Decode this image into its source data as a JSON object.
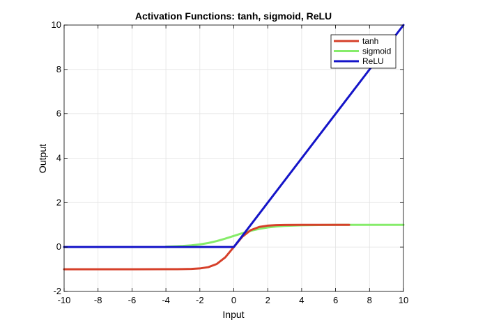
{
  "chart_data": {
    "type": "line",
    "title": "Activation Functions: tanh, sigmoid, ReLU",
    "xlabel": "Input",
    "ylabel": "Output",
    "xlim": [
      -10,
      10
    ],
    "ylim": [
      -2,
      10
    ],
    "xticks": [
      -10,
      -8,
      -6,
      -4,
      -2,
      0,
      2,
      4,
      6,
      8,
      10
    ],
    "yticks": [
      -2,
      0,
      2,
      4,
      6,
      8,
      10
    ],
    "grid": true,
    "legend_position": "top-right",
    "series": [
      {
        "name": "tanh",
        "color": "#d6402a",
        "x": [
          -10,
          -8,
          -6,
          -4,
          -3,
          -2.5,
          -2,
          -1.5,
          -1,
          -0.5,
          0,
          0.5,
          1,
          1.5,
          2,
          2.5,
          3,
          4,
          5,
          6,
          6.8
        ],
        "y": [
          -1,
          -1,
          -1,
          -0.999,
          -0.995,
          -0.987,
          -0.964,
          -0.905,
          -0.762,
          -0.462,
          0,
          0.462,
          0.762,
          0.905,
          0.964,
          0.987,
          0.995,
          0.999,
          1,
          1,
          1
        ]
      },
      {
        "name": "sigmoid",
        "color": "#86ec6a",
        "x": [
          -4,
          -3,
          -2.5,
          -2,
          -1.5,
          -1,
          -0.5,
          0,
          0.5,
          1,
          1.5,
          2,
          2.5,
          3,
          4,
          5,
          6,
          7,
          8,
          9,
          10
        ],
        "y": [
          0.018,
          0.047,
          0.076,
          0.119,
          0.182,
          0.269,
          0.378,
          0.5,
          0.622,
          0.731,
          0.818,
          0.881,
          0.924,
          0.953,
          0.982,
          0.993,
          0.998,
          0.999,
          1,
          1,
          1
        ]
      },
      {
        "name": "ReLU",
        "color": "#1414c8",
        "x": [
          -10,
          0,
          10
        ],
        "y": [
          0,
          0,
          10
        ]
      }
    ]
  }
}
